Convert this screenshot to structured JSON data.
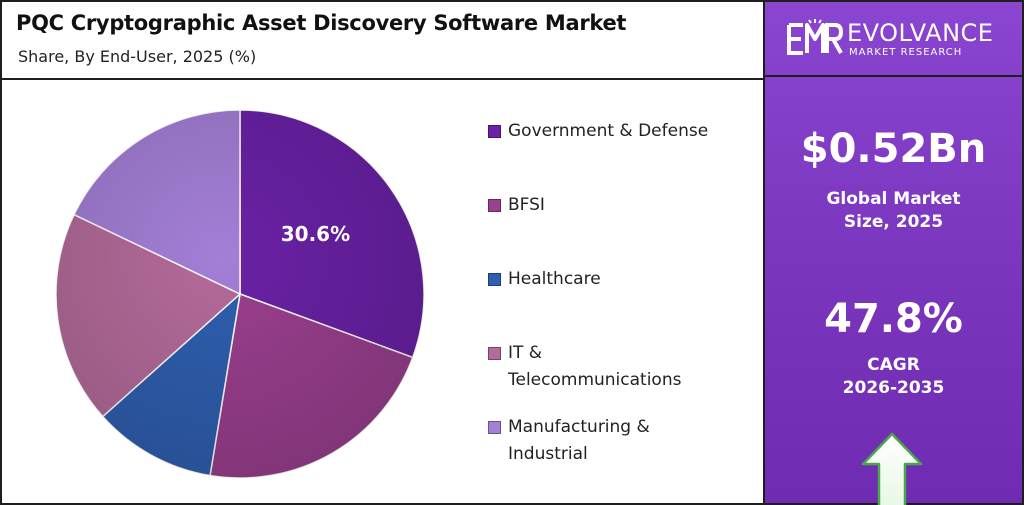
{
  "header": {
    "title": "PQC Cryptographic Asset Discovery Software Market",
    "subtitle": "Share, By End-User, 2025 (%)"
  },
  "chart_data": {
    "type": "pie",
    "title": "PQC Cryptographic Asset Discovery Software Market",
    "subtitle": "Share, By End-User, 2025 (%)",
    "categories": [
      "Government & Defense",
      "BFSI",
      "Healthcare",
      "IT & Telecommunications",
      "Manufacturing & Industrial"
    ],
    "values": [
      30.6,
      22.0,
      10.8,
      18.7,
      17.9
    ],
    "colors": [
      "#6a21a6",
      "#9b3f8f",
      "#2f5fb0",
      "#b46b9a",
      "#a37fd6"
    ],
    "data_labels": [
      "30.6%",
      "",
      "",
      "",
      ""
    ],
    "legend_position": "right"
  },
  "legend": {
    "items": [
      {
        "label_lines": [
          "Government & Defense"
        ],
        "color": "#6a21a6"
      },
      {
        "label_lines": [
          "BFSI"
        ],
        "color": "#9b3f8f"
      },
      {
        "label_lines": [
          "Healthcare"
        ],
        "color": "#2f5fb0"
      },
      {
        "label_lines": [
          "IT &",
          "Telecommunications"
        ],
        "color": "#b46b9a"
      },
      {
        "label_lines": [
          "Manufacturing &",
          "Industrial"
        ],
        "color": "#a37fd6"
      }
    ]
  },
  "side_panel": {
    "brand_name": "EVOLVANCE",
    "brand_sub": "MARKET RESEARCH",
    "logo_mark": "EMR",
    "market_size_value": "$0.52Bn",
    "market_size_label_1": "Global Market",
    "market_size_label_2": "Size, 2025",
    "cagr_value": "47.8%",
    "cagr_label_1": "CAGR",
    "cagr_label_2": "2026-2035",
    "arrow_icon": "up-arrow-icon"
  }
}
